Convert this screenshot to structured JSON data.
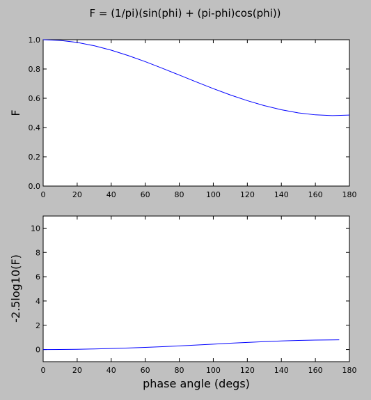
{
  "figure": {
    "title": "F = (1/pi)(sin(phi) + (pi-phi)cos(phi))",
    "colors": {
      "background": "#c0c0c0",
      "plot_bg": "#ffffff",
      "line": "#0000ff",
      "axes": "#000000"
    }
  },
  "chart_data": [
    {
      "type": "line",
      "title": "F = (1/pi)(sin(phi) + (pi-phi)cos(phi))",
      "xlabel": "",
      "ylabel": "F",
      "xlim": [
        0,
        180
      ],
      "ylim": [
        0.0,
        1.0
      ],
      "xticks": [
        "0",
        "20",
        "40",
        "60",
        "80",
        "100",
        "120",
        "140",
        "160",
        "180"
      ],
      "yticks": [
        "0.0",
        "0.2",
        "0.4",
        "0.6",
        "0.8",
        "1.0"
      ],
      "grid": false,
      "series": [
        {
          "x": [
            0,
            10,
            20,
            30,
            40,
            50,
            60,
            70,
            80,
            90,
            100,
            110,
            120,
            130,
            140,
            150,
            160,
            170,
            180
          ],
          "y": [
            1.0,
            0.9953,
            0.9813,
            0.9587,
            0.9284,
            0.8918,
            0.8502,
            0.8052,
            0.7585,
            0.7115,
            0.6658,
            0.6227,
            0.5836,
            0.5495,
            0.5214,
            0.5002,
            0.4866,
            0.4813,
            0.4849
          ]
        }
      ]
    },
    {
      "type": "line",
      "xlabel": "phase angle (degs)",
      "ylabel": "-2.5log10(F)",
      "xlim": [
        0,
        180
      ],
      "ylim": [
        -1,
        11
      ],
      "xticks": [
        "0",
        "20",
        "40",
        "60",
        "80",
        "100",
        "120",
        "140",
        "160",
        "180"
      ],
      "yticks": [
        "0",
        "2",
        "4",
        "6",
        "8",
        "10"
      ],
      "grid": false,
      "series": [
        {
          "x": [
            0,
            10,
            20,
            30,
            40,
            50,
            60,
            70,
            80,
            90,
            100,
            110,
            120,
            130,
            140,
            150,
            160,
            170,
            174
          ],
          "y": [
            0,
            0.005,
            0.021,
            0.046,
            0.081,
            0.124,
            0.176,
            0.235,
            0.3,
            0.371,
            0.445,
            0.518,
            0.586,
            0.651,
            0.707,
            0.753,
            0.783,
            0.795,
            0.8
          ]
        }
      ]
    }
  ]
}
